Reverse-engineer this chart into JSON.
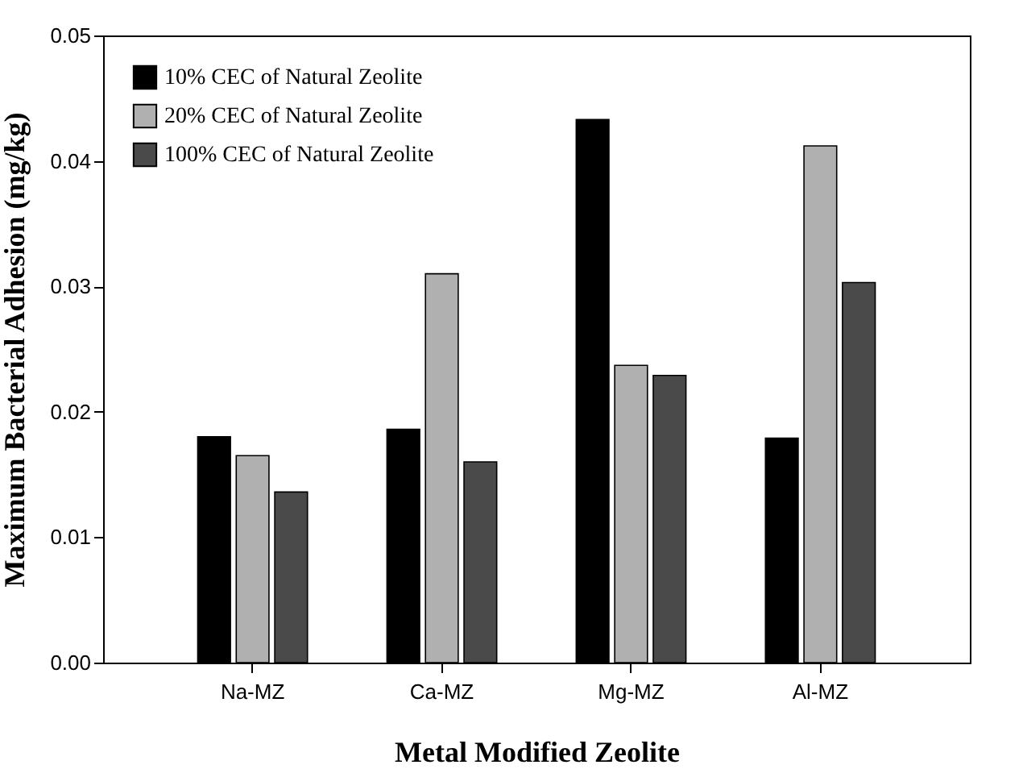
{
  "chart_data": {
    "type": "bar",
    "xlabel": "Metal Modified Zeolite",
    "ylabel": "Maximum Bacterial Adhesion (mg/kg)",
    "categories": [
      "Na-MZ",
      "Ca-MZ",
      "Mg-MZ",
      "Al-MZ"
    ],
    "series": [
      {
        "name": "10% CEC of Natural Zeolite",
        "color": "#000000",
        "values": [
          0.018,
          0.0186,
          0.0433,
          0.0179
        ]
      },
      {
        "name": "20% CEC of Natural Zeolite",
        "color": "#b0b0b0",
        "values": [
          0.0165,
          0.031,
          0.0237,
          0.0412
        ]
      },
      {
        "name": "100% CEC of Natural Zeolite",
        "color": "#4a4a4a",
        "values": [
          0.0136,
          0.016,
          0.0229,
          0.0303
        ]
      }
    ],
    "ylim": [
      0,
      0.05
    ],
    "yticks": [
      {
        "value": 0,
        "label": "0.00"
      },
      {
        "value": 0.01,
        "label": "0.01"
      },
      {
        "value": 0.02,
        "label": "0.02"
      },
      {
        "value": 0.03,
        "label": "0.03"
      },
      {
        "value": 0.04,
        "label": "0.04"
      },
      {
        "value": 0.05,
        "label": "0.05"
      }
    ],
    "grid": false,
    "legend": "top left"
  }
}
